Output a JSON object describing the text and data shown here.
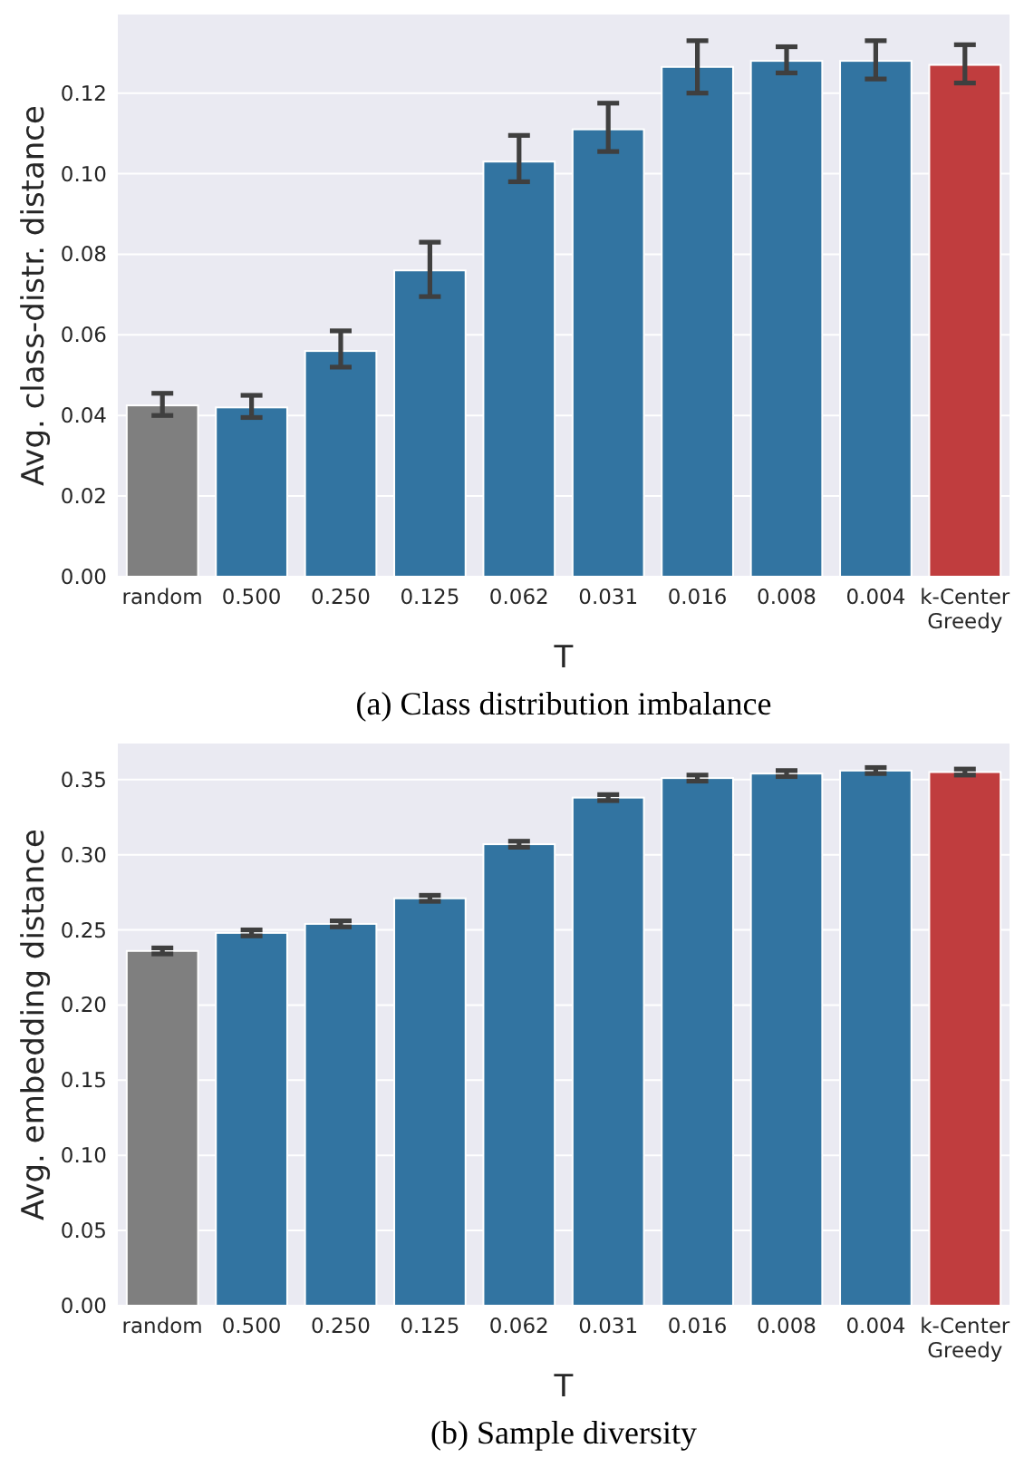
{
  "chart_data": [
    {
      "type": "bar",
      "title": "(a) Class distribution imbalance",
      "xlabel": "T",
      "ylabel": "Avg. class-distr. distance",
      "categories": [
        "random",
        "0.500",
        "0.250",
        "0.125",
        "0.062",
        "0.031",
        "0.016",
        "0.008",
        "0.004",
        "k-Center Greedy"
      ],
      "values": [
        0.0425,
        0.042,
        0.056,
        0.076,
        0.103,
        0.111,
        0.1265,
        0.128,
        0.128,
        0.127
      ],
      "errors": [
        [
          0.04,
          0.0455
        ],
        [
          0.0395,
          0.045
        ],
        [
          0.052,
          0.061
        ],
        [
          0.0695,
          0.083
        ],
        [
          0.098,
          0.1095
        ],
        [
          0.1055,
          0.1175
        ],
        [
          0.12,
          0.133
        ],
        [
          0.125,
          0.1315
        ],
        [
          0.1235,
          0.133
        ],
        [
          0.1225,
          0.132
        ]
      ],
      "colors": [
        "#7f7f7f",
        "#3274a1",
        "#3274a1",
        "#3274a1",
        "#3274a1",
        "#3274a1",
        "#3274a1",
        "#3274a1",
        "#3274a1",
        "#c03d3e"
      ],
      "ylim": [
        0,
        0.1395
      ],
      "yticks": [
        {
          "value": 0,
          "label": "0.00"
        },
        {
          "value": 0.02,
          "label": "0.02"
        },
        {
          "value": 0.04,
          "label": "0.04"
        },
        {
          "value": 0.06,
          "label": "0.06"
        },
        {
          "value": 0.08,
          "label": "0.08"
        },
        {
          "value": 0.1,
          "label": "0.10"
        },
        {
          "value": 0.12,
          "label": "0.12"
        }
      ],
      "grid": "y"
    },
    {
      "type": "bar",
      "title": "(b) Sample diversity",
      "xlabel": "T",
      "ylabel": "Avg. embedding distance",
      "categories": [
        "random",
        "0.500",
        "0.250",
        "0.125",
        "0.062",
        "0.031",
        "0.016",
        "0.008",
        "0.004",
        "k-Center Greedy"
      ],
      "values": [
        0.236,
        0.248,
        0.254,
        0.271,
        0.307,
        0.338,
        0.351,
        0.354,
        0.356,
        0.355
      ],
      "errors": [
        0.002,
        0.002,
        0.002,
        0.002,
        0.002,
        0.002,
        0.002,
        0.002,
        0.002,
        0.002
      ],
      "colors": [
        "#7f7f7f",
        "#3274a1",
        "#3274a1",
        "#3274a1",
        "#3274a1",
        "#3274a1",
        "#3274a1",
        "#3274a1",
        "#3274a1",
        "#c03d3e"
      ],
      "ylim": [
        0,
        0.374
      ],
      "yticks": [
        {
          "value": 0,
          "label": "0.00"
        },
        {
          "value": 0.05,
          "label": "0.05"
        },
        {
          "value": 0.1,
          "label": "0.10"
        },
        {
          "value": 0.15,
          "label": "0.15"
        },
        {
          "value": 0.2,
          "label": "0.20"
        },
        {
          "value": 0.25,
          "label": "0.25"
        },
        {
          "value": 0.3,
          "label": "0.30"
        },
        {
          "value": 0.35,
          "label": "0.35"
        }
      ],
      "grid": "y"
    }
  ]
}
